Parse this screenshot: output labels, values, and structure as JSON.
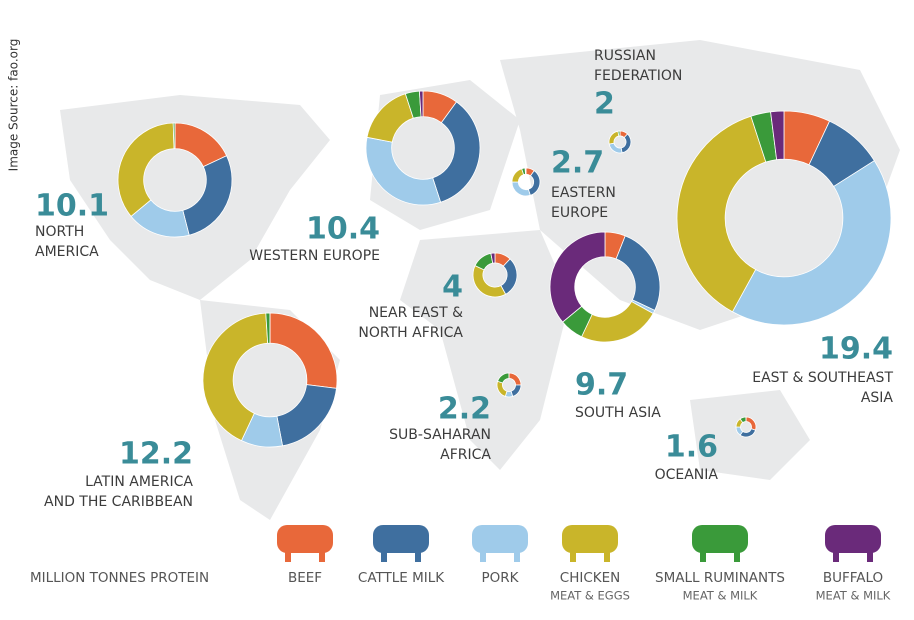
{
  "chart_data": {
    "type": "donut",
    "source": "Image Source: fao.org",
    "unit": "MILLION TONNES PROTEIN",
    "series": [
      {
        "name": "BEEF",
        "color": "#e8683a"
      },
      {
        "name": "CATTLE MILK",
        "color": "#3f6f9f"
      },
      {
        "name": "PORK",
        "color": "#9fcbea"
      },
      {
        "name": "CHICKEN",
        "sublabel": "MEAT & EGGS",
        "color": "#c9b52a"
      },
      {
        "name": "SMALL RUMINANTS",
        "sublabel": "MEAT & MILK",
        "color": "#3a9a3a"
      },
      {
        "name": "BUFFALO",
        "sublabel": "MEAT & MILK",
        "color": "#6a2a7a"
      }
    ],
    "regions": [
      {
        "name_lines": [
          "NORTH",
          "AMERICA"
        ],
        "total": 10.1,
        "values": [
          18,
          28,
          18,
          35.5,
          0.5,
          0
        ]
      },
      {
        "name_lines": [
          "WESTERN EUROPE"
        ],
        "total": 10.4,
        "values": [
          10,
          35,
          33,
          17,
          4,
          1
        ]
      },
      {
        "name_lines": [
          "LATIN AMERICA",
          "AND THE CARIBBEAN"
        ],
        "total": 12.2,
        "values": [
          27,
          20,
          10,
          42,
          1,
          0
        ]
      },
      {
        "name_lines": [
          "EAST & SOUTHEAST",
          "ASIA"
        ],
        "total": 19.4,
        "values": [
          7,
          9,
          42,
          37,
          3,
          2
        ]
      },
      {
        "name_lines": [
          "SOUTH ASIA"
        ],
        "total": 9.7,
        "values": [
          6,
          26,
          1,
          24,
          7,
          36
        ]
      },
      {
        "name_lines": [
          "NEAR EAST &",
          "NORTH AFRICA"
        ],
        "total": 4.0,
        "values": [
          12,
          30,
          0,
          40,
          15,
          3
        ]
      },
      {
        "name_lines": [
          "EASTERN",
          "EUROPE"
        ],
        "total": 2.7,
        "values": [
          10,
          35,
          30,
          20,
          4,
          1
        ]
      },
      {
        "name_lines": [
          "RUSSIAN",
          "FEDERATION"
        ],
        "total": 2.0,
        "values": [
          12,
          35,
          25,
          25,
          3,
          0
        ]
      },
      {
        "name_lines": [
          "SUB-SAHARAN",
          "AFRICA"
        ],
        "total": 2.2,
        "values": [
          25,
          20,
          10,
          25,
          20,
          0
        ]
      },
      {
        "name_lines": [
          "OCEANIA"
        ],
        "total": 1.6,
        "values": [
          30,
          30,
          15,
          15,
          10,
          0
        ]
      }
    ]
  }
}
